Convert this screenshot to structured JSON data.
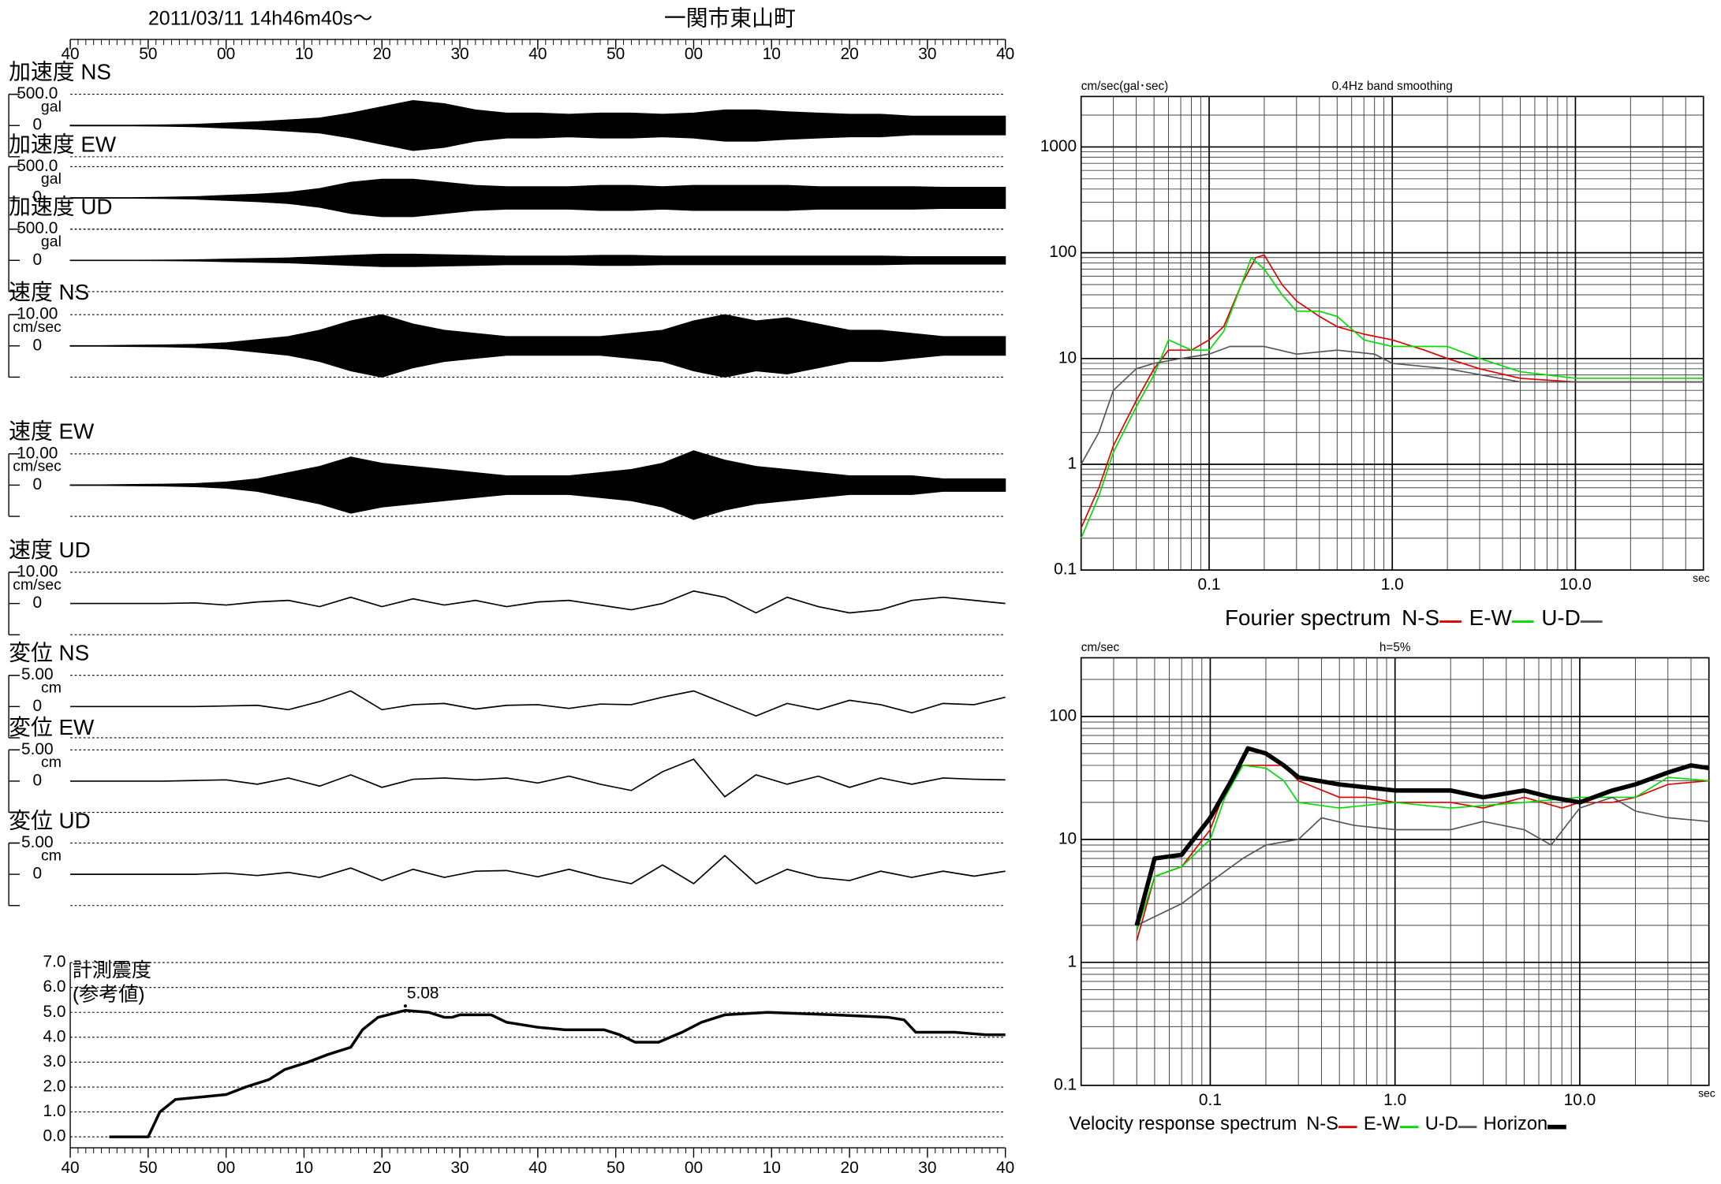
{
  "chart_data": [
    {
      "type": "waveform",
      "title": "2011/03/11  14h46m40s〜",
      "subtitle": "一関市東山町",
      "xlim": [
        0,
        120
      ],
      "xticks": [
        {
          "value": 0,
          "label": "40"
        },
        {
          "value": 10,
          "label": "50"
        },
        {
          "value": 20,
          "label": "00"
        },
        {
          "value": 30,
          "label": "10"
        },
        {
          "value": 40,
          "label": "20"
        },
        {
          "value": 50,
          "label": "30"
        },
        {
          "value": 60,
          "label": "40"
        },
        {
          "value": 70,
          "label": "50"
        },
        {
          "value": 80,
          "label": "00"
        },
        {
          "value": 90,
          "label": "10"
        },
        {
          "value": 100,
          "label": "20"
        },
        {
          "value": 110,
          "label": "30"
        },
        {
          "value": 120,
          "label": "40"
        }
      ],
      "minor_ticks": true,
      "x": [
        0,
        4,
        8,
        12,
        16,
        20,
        24,
        28,
        32,
        36,
        40,
        44,
        48,
        52,
        56,
        60,
        64,
        68,
        72,
        76,
        80,
        84,
        88,
        92,
        96,
        100,
        104,
        108,
        112,
        116,
        120
      ],
      "panels": [
        {
          "name": "加速度 NS",
          "unit": "gal",
          "style": "envelope",
          "ylim": [
            -500,
            500
          ],
          "yticks": [
            {
              "value": 500,
              "label": "500.0"
            },
            0
          ],
          "values": [
            5,
            5,
            5,
            10,
            20,
            40,
            60,
            90,
            120,
            200,
            300,
            400,
            350,
            250,
            200,
            200,
            180,
            200,
            200,
            180,
            200,
            250,
            250,
            220,
            200,
            180,
            180,
            150,
            150,
            150,
            150
          ]
        },
        {
          "name": "加速度 EW",
          "unit": "gal",
          "style": "envelope",
          "ylim": [
            -500,
            500
          ],
          "yticks": [
            {
              "value": 500,
              "label": "500.0"
            },
            0
          ],
          "values": [
            5,
            5,
            5,
            10,
            20,
            40,
            60,
            90,
            150,
            250,
            300,
            300,
            250,
            200,
            180,
            180,
            180,
            200,
            200,
            180,
            200,
            200,
            200,
            200,
            180,
            180,
            180,
            180,
            170,
            170,
            170
          ]
        },
        {
          "name": "加速度 UD",
          "unit": "gal",
          "style": "envelope",
          "ylim": [
            -500,
            500
          ],
          "yticks": [
            {
              "value": 500,
              "label": "500.0"
            },
            0
          ],
          "values": [
            3,
            3,
            3,
            5,
            10,
            20,
            30,
            40,
            60,
            80,
            100,
            100,
            90,
            80,
            70,
            70,
            70,
            80,
            80,
            70,
            70,
            70,
            70,
            70,
            70,
            70,
            70,
            60,
            60,
            60,
            60
          ]
        },
        {
          "name": "速度 NS",
          "unit": "cm/sec",
          "style": "envelope",
          "ylim": [
            -10,
            10
          ],
          "yticks": [
            {
              "value": 10,
              "label": "10.00"
            },
            0
          ],
          "values": [
            0.1,
            0.1,
            0.2,
            0.3,
            0.5,
            1,
            2,
            3,
            5,
            8,
            10,
            7,
            5,
            4,
            3,
            3,
            3,
            3,
            4,
            5,
            8,
            10,
            8,
            9,
            7,
            5,
            5,
            4,
            3,
            3,
            3
          ]
        },
        {
          "name": "速度 EW",
          "unit": "cm/sec",
          "style": "envelope",
          "ylim": [
            -10,
            10
          ],
          "yticks": [
            {
              "value": 10,
              "label": "10.00"
            },
            0
          ],
          "values": [
            0.1,
            0.1,
            0.2,
            0.3,
            0.5,
            1,
            2,
            4,
            6,
            9,
            7,
            6,
            5,
            4,
            3,
            3,
            3,
            4,
            5,
            7,
            11,
            8,
            6,
            5,
            4,
            3,
            3,
            3,
            2,
            2,
            2
          ]
        },
        {
          "name": "速度 UD",
          "unit": "cm/sec",
          "style": "line",
          "ylim": [
            -10,
            10
          ],
          "yticks": [
            {
              "value": 10,
              "label": "10.00"
            },
            0
          ],
          "values": [
            0,
            0,
            0,
            0,
            0.2,
            -0.5,
            0.5,
            1,
            -1,
            2,
            -1,
            1.5,
            -0.5,
            1,
            -1,
            0.5,
            1,
            -0.5,
            -2,
            0,
            4,
            2,
            -3,
            2,
            -1,
            -3,
            -2,
            1,
            2,
            1,
            0
          ]
        },
        {
          "name": "変位 NS",
          "unit": "cm",
          "style": "line",
          "ylim": [
            -5,
            5
          ],
          "yticks": [
            {
              "value": 5,
              "label": "5.00"
            },
            0
          ],
          "values": [
            0,
            0,
            0,
            0,
            0,
            0.1,
            0.2,
            -0.5,
            0.8,
            2.5,
            -0.5,
            0.3,
            0.5,
            -0.4,
            0.2,
            0.3,
            -0.3,
            0.4,
            0.3,
            1.5,
            2.5,
            0.5,
            -1.5,
            0.5,
            -0.5,
            1,
            0.3,
            -1,
            0.5,
            0.3,
            1.5
          ]
        },
        {
          "name": "変位 EW",
          "unit": "cm",
          "style": "line",
          "ylim": [
            -5,
            5
          ],
          "yticks": [
            {
              "value": 5,
              "label": "5.00"
            },
            0
          ],
          "values": [
            0,
            0,
            0,
            0,
            0.1,
            0.2,
            -0.5,
            0.5,
            -0.8,
            1.0,
            -1.0,
            0.3,
            0.5,
            0.2,
            0.5,
            -0.3,
            0.8,
            -0.5,
            -1.5,
            1.5,
            3.5,
            -2.5,
            1.0,
            -0.5,
            0.8,
            -1.0,
            0.5,
            -0.5,
            0.5,
            0.3,
            0.2
          ]
        },
        {
          "name": "変位 UD",
          "unit": "cm",
          "style": "line",
          "ylim": [
            -5,
            5
          ],
          "yticks": [
            {
              "value": 5,
              "label": "5.00"
            },
            0
          ],
          "values": [
            0,
            0,
            0,
            0,
            0,
            0.2,
            -0.2,
            0.3,
            -0.5,
            1.0,
            -1.0,
            0.8,
            -0.5,
            0.5,
            0.6,
            -0.4,
            0.8,
            -0.5,
            -1.5,
            1.5,
            -1.5,
            3.0,
            -1.5,
            0.8,
            -0.5,
            -1.0,
            0.5,
            -0.5,
            0.5,
            -0.3,
            0.5
          ]
        }
      ]
    },
    {
      "type": "line",
      "title": "計測震度",
      "subtitle": "(参考値)",
      "xlim": [
        0,
        120
      ],
      "xticks": [
        {
          "value": 0,
          "label": "40"
        },
        {
          "value": 10,
          "label": "50"
        },
        {
          "value": 20,
          "label": "00"
        },
        {
          "value": 30,
          "label": "10"
        },
        {
          "value": 40,
          "label": "20"
        },
        {
          "value": 50,
          "label": "30"
        },
        {
          "value": 60,
          "label": "40"
        },
        {
          "value": 70,
          "label": "50"
        },
        {
          "value": 80,
          "label": "00"
        },
        {
          "value": 90,
          "label": "10"
        },
        {
          "value": 100,
          "label": "20"
        },
        {
          "value": 110,
          "label": "30"
        },
        {
          "value": 120,
          "label": "40"
        }
      ],
      "minor_ticks": true,
      "ylim": [
        0,
        7
      ],
      "yticks": [
        {
          "value": 0,
          "label": "0.0"
        },
        {
          "value": 1,
          "label": "1.0"
        },
        {
          "value": 2,
          "label": "2.0"
        },
        {
          "value": 3,
          "label": "3.0"
        },
        {
          "value": 4,
          "label": "4.0"
        },
        {
          "value": 5,
          "label": "5.0"
        },
        {
          "value": 6,
          "label": "6.0"
        },
        {
          "value": 7,
          "label": "7.0"
        }
      ],
      "grid": true,
      "x": [
        5,
        10,
        11.5,
        13.5,
        20,
        22.5,
        25.5,
        27.5,
        30.5,
        33,
        36,
        37.5,
        39.5,
        43,
        46,
        48,
        49,
        50,
        54,
        56,
        60,
        63.5,
        68.5,
        70.5,
        72.5,
        75.5,
        78.5,
        81,
        84,
        89.5,
        98,
        105,
        107,
        108.5,
        113.5,
        117.5,
        120
      ],
      "values": [
        0,
        0,
        1.0,
        1.5,
        1.7,
        2.0,
        2.3,
        2.7,
        3.0,
        3.3,
        3.6,
        4.3,
        4.8,
        5.08,
        5.0,
        4.8,
        4.8,
        4.9,
        4.9,
        4.6,
        4.4,
        4.3,
        4.3,
        4.1,
        3.8,
        3.8,
        4.2,
        4.6,
        4.9,
        5.0,
        4.9,
        4.8,
        4.7,
        4.2,
        4.2,
        4.1,
        4.1
      ],
      "color": "#000000",
      "annotation": {
        "x": 43,
        "value": 5.08
      }
    },
    {
      "type": "logline",
      "unit": "cm/sec(gal･sec)",
      "subtitle": "0.4Hz band smoothing",
      "xlabel": "sec",
      "legend_title": "Fourier spectrum",
      "log_x": true,
      "log_y": true,
      "grid": true,
      "xlim": [
        0.02,
        50
      ],
      "ylim": [
        0.1,
        3000
      ],
      "xticks": [
        0.1,
        {
          "value": 1,
          "label": "1.0"
        },
        {
          "value": 10,
          "label": "10.0"
        }
      ],
      "yticks": [
        0.1,
        1,
        10,
        100,
        1000
      ],
      "series": [
        {
          "name": "N-S",
          "color": "#e00000",
          "width": 1.2,
          "x": [
            0.02,
            0.025,
            0.03,
            0.04,
            0.05,
            0.06,
            0.08,
            0.1,
            0.12,
            0.15,
            0.18,
            0.2,
            0.25,
            0.3,
            0.4,
            0.5,
            0.7,
            1,
            1.5,
            2,
            3,
            5,
            10,
            20,
            50
          ],
          "values": [
            0.25,
            0.6,
            1.5,
            4,
            8,
            12,
            12,
            15,
            20,
            50,
            90,
            95,
            50,
            35,
            25,
            20,
            17,
            15,
            12,
            10,
            8,
            6.5,
            6,
            6,
            6
          ]
        },
        {
          "name": "E-W",
          "color": "#00dd00",
          "width": 1.2,
          "x": [
            0.02,
            0.025,
            0.03,
            0.04,
            0.05,
            0.06,
            0.08,
            0.1,
            0.12,
            0.15,
            0.17,
            0.2,
            0.25,
            0.3,
            0.4,
            0.5,
            0.7,
            1,
            1.5,
            2,
            3,
            5,
            10,
            50
          ],
          "values": [
            0.2,
            0.5,
            1.3,
            3.5,
            7,
            15,
            12,
            12,
            18,
            50,
            90,
            70,
            40,
            28,
            28,
            25,
            15,
            13,
            13,
            13,
            10,
            7.5,
            6.5,
            6.5
          ]
        },
        {
          "name": "U-D",
          "color": "#555555",
          "width": 1.2,
          "x": [
            0.02,
            0.025,
            0.03,
            0.04,
            0.05,
            0.07,
            0.1,
            0.13,
            0.2,
            0.3,
            0.5,
            0.8,
            1,
            2,
            5,
            10,
            50
          ],
          "values": [
            1,
            2,
            5,
            8,
            9,
            10,
            11,
            13,
            13,
            11,
            12,
            11,
            9,
            8,
            6,
            6,
            6
          ]
        }
      ]
    },
    {
      "type": "logline",
      "unit": "cm/sec",
      "subtitle": "h=5%",
      "xlabel": "sec",
      "legend_title": "Velocity response spectrum",
      "log_x": true,
      "log_y": true,
      "grid": true,
      "xlim": [
        0.02,
        50
      ],
      "ylim": [
        0.1,
        300
      ],
      "xticks": [
        0.1,
        {
          "value": 1,
          "label": "1.0"
        },
        {
          "value": 10,
          "label": "10.0"
        }
      ],
      "yticks": [
        0.1,
        1,
        10,
        100
      ],
      "series": [
        {
          "name": "N-S",
          "color": "#e00000",
          "width": 1.2,
          "x": [
            0.04,
            0.05,
            0.07,
            0.1,
            0.12,
            0.15,
            0.2,
            0.25,
            0.3,
            0.5,
            0.7,
            1,
            2,
            3,
            5,
            8,
            10,
            15,
            20,
            30,
            50
          ],
          "values": [
            1.5,
            5,
            6,
            12,
            25,
            40,
            40,
            40,
            30,
            22,
            22,
            20,
            20,
            18,
            22,
            18,
            20,
            20,
            22,
            28,
            30
          ]
        },
        {
          "name": "E-W",
          "color": "#00dd00",
          "width": 1.2,
          "x": [
            0.04,
            0.05,
            0.07,
            0.1,
            0.12,
            0.15,
            0.2,
            0.25,
            0.3,
            0.5,
            1,
            2,
            5,
            10,
            20,
            30,
            50
          ],
          "values": [
            1.8,
            5,
            6,
            10,
            22,
            40,
            38,
            30,
            20,
            18,
            20,
            18,
            20,
            22,
            22,
            32,
            30
          ]
        },
        {
          "name": "U-D",
          "color": "#555555",
          "width": 1.2,
          "x": [
            0.04,
            0.07,
            0.1,
            0.15,
            0.2,
            0.3,
            0.4,
            0.6,
            1,
            2,
            3,
            5,
            7,
            10,
            15,
            20,
            30,
            50
          ],
          "values": [
            2,
            3,
            4.5,
            7,
            9,
            10,
            15,
            13,
            12,
            12,
            14,
            12,
            9,
            18,
            22,
            17,
            15,
            14
          ]
        },
        {
          "name": "Horizon",
          "color": "#000000",
          "width": 4,
          "x": [
            0.04,
            0.05,
            0.07,
            0.1,
            0.13,
            0.16,
            0.2,
            0.25,
            0.3,
            0.5,
            1,
            2,
            3,
            5,
            7,
            10,
            15,
            20,
            30,
            40,
            50
          ],
          "values": [
            2,
            7,
            7.5,
            15,
            30,
            55,
            50,
            40,
            32,
            28,
            25,
            25,
            22,
            25,
            22,
            20,
            25,
            28,
            35,
            40,
            38
          ]
        }
      ]
    }
  ]
}
